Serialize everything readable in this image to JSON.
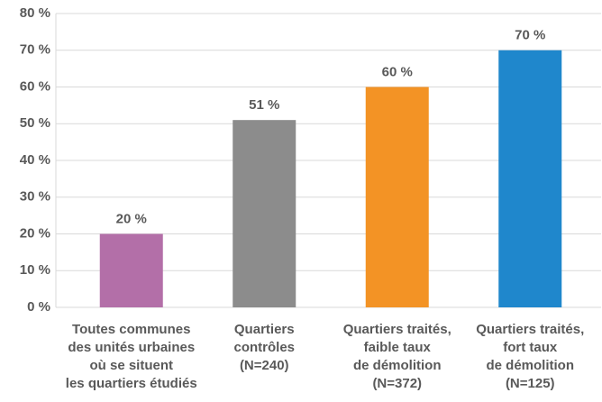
{
  "chart_data": {
    "type": "bar",
    "categories": [
      [
        "Toutes communes",
        "des unités urbaines",
        "où se situent",
        "les quartiers étudiés"
      ],
      [
        "Quartiers",
        "contrôles",
        "(N=240)"
      ],
      [
        "Quartiers traités,",
        "faible taux",
        "de démolition",
        "(N=372)"
      ],
      [
        "Quartiers traités,",
        "fort taux",
        "de démolition",
        "(N=125)"
      ]
    ],
    "values": [
      20,
      51,
      60,
      70
    ],
    "value_labels": [
      "20 %",
      "51 %",
      "60 %",
      "70 %"
    ],
    "colors": [
      "#b36fa8",
      "#8c8c8c",
      "#f39325",
      "#1f87cc"
    ],
    "ylim": [
      0,
      80
    ],
    "yticks": [
      {
        "value": 0,
        "label": "0 %"
      },
      {
        "value": 10,
        "label": "10 %"
      },
      {
        "value": 20,
        "label": "20 %"
      },
      {
        "value": 30,
        "label": "30 %"
      },
      {
        "value": 40,
        "label": "40 %"
      },
      {
        "value": 50,
        "label": "50 %"
      },
      {
        "value": 60,
        "label": "60 %"
      },
      {
        "value": 70,
        "label": "70 %"
      },
      {
        "value": 80,
        "label": "80 %"
      }
    ],
    "grid": true
  }
}
